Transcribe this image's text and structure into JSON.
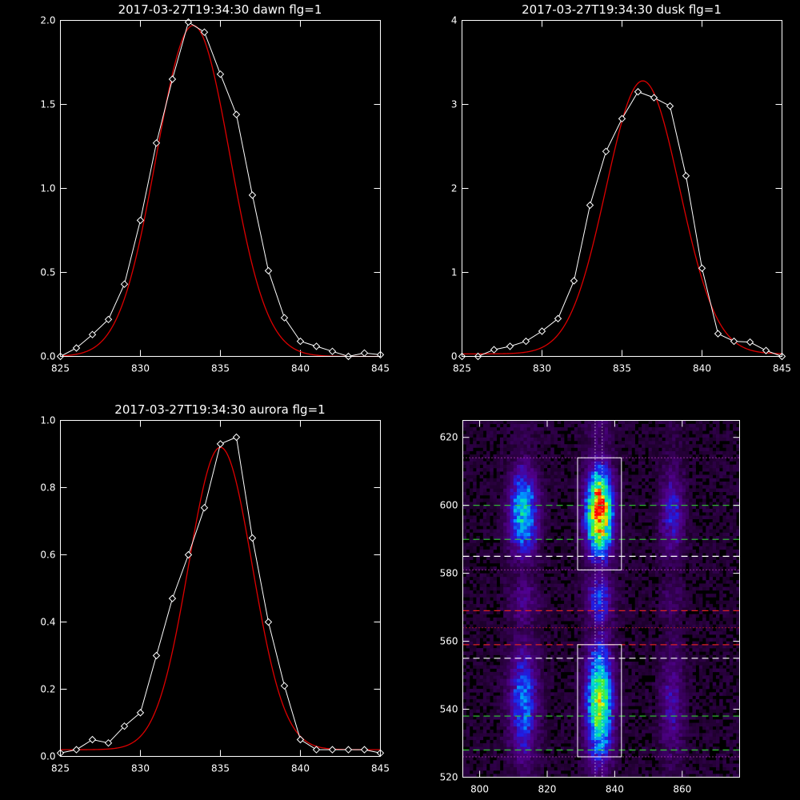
{
  "chart_data": [
    {
      "id": "dawn",
      "type": "line",
      "title": "2017-03-27T19:34:30 dawn flg=1",
      "xlim": [
        825,
        845
      ],
      "ylim": [
        0,
        2.0
      ],
      "xticks": [
        825,
        830,
        835,
        840,
        845
      ],
      "yticks": [
        0.0,
        0.5,
        1.0,
        1.5,
        2.0
      ],
      "ytick_labels": [
        "0.0",
        "0.5",
        "1.0",
        "1.5",
        "2.0"
      ],
      "series": [
        {
          "kind": "data",
          "color": "#ffffff",
          "marker": "diamond",
          "x": [
            825,
            826,
            827,
            828,
            829,
            830,
            831,
            832,
            833,
            834,
            835,
            836,
            837,
            838,
            839,
            840,
            841,
            842,
            843,
            844,
            845
          ],
          "y": [
            0.0,
            0.05,
            0.13,
            0.22,
            0.43,
            0.81,
            1.27,
            1.65,
            1.99,
            1.93,
            1.68,
            1.44,
            0.96,
            0.51,
            0.23,
            0.09,
            0.06,
            0.03,
            0.0,
            0.02,
            0.01
          ]
        },
        {
          "kind": "fit",
          "color": "#dd0000",
          "amp": 1.97,
          "mu": 833.3,
          "sigma": 2.3,
          "offset": 0.0
        }
      ]
    },
    {
      "id": "dusk",
      "type": "line",
      "title": "2017-03-27T19:34:30 dusk flg=1",
      "xlim": [
        825,
        845
      ],
      "ylim": [
        0,
        4
      ],
      "xticks": [
        825,
        830,
        835,
        840,
        845
      ],
      "yticks": [
        0,
        1,
        2,
        3,
        4
      ],
      "ytick_labels": [
        "0",
        "1",
        "2",
        "3",
        "4"
      ],
      "series": [
        {
          "kind": "data",
          "color": "#ffffff",
          "marker": "diamond",
          "x": [
            825,
            826,
            827,
            828,
            829,
            830,
            831,
            832,
            833,
            834,
            835,
            836,
            837,
            838,
            839,
            840,
            841,
            842,
            843,
            844,
            845
          ],
          "y": [
            0.0,
            0.0,
            0.08,
            0.12,
            0.18,
            0.3,
            0.45,
            0.9,
            1.8,
            2.44,
            2.83,
            3.15,
            3.08,
            2.98,
            2.15,
            1.05,
            0.27,
            0.18,
            0.17,
            0.07,
            0.0
          ]
        },
        {
          "kind": "fit",
          "color": "#dd0000",
          "amp": 3.25,
          "mu": 836.3,
          "sigma": 2.3,
          "offset": 0.03
        }
      ]
    },
    {
      "id": "aurora",
      "type": "line",
      "title": "2017-03-27T19:34:30 aurora flg=1",
      "xlim": [
        825,
        845
      ],
      "ylim": [
        0,
        1.0
      ],
      "xticks": [
        825,
        830,
        835,
        840,
        845
      ],
      "yticks": [
        0.0,
        0.2,
        0.4,
        0.6,
        0.8,
        1.0
      ],
      "ytick_labels": [
        "0.0",
        "0.2",
        "0.4",
        "0.6",
        "0.8",
        "1.0"
      ],
      "series": [
        {
          "kind": "data",
          "color": "#ffffff",
          "marker": "diamond",
          "x": [
            825,
            826,
            827,
            828,
            829,
            830,
            831,
            832,
            833,
            834,
            835,
            836,
            837,
            838,
            839,
            840,
            841,
            842,
            843,
            844,
            845
          ],
          "y": [
            0.01,
            0.02,
            0.05,
            0.04,
            0.09,
            0.13,
            0.3,
            0.47,
            0.6,
            0.74,
            0.93,
            0.95,
            0.65,
            0.4,
            0.21,
            0.05,
            0.02,
            0.02,
            0.02,
            0.02,
            0.01
          ]
        },
        {
          "kind": "fit",
          "color": "#dd0000",
          "amp": 0.9,
          "mu": 835.0,
          "sigma": 2.0,
          "offset": 0.02
        }
      ]
    },
    {
      "id": "spectrogram",
      "type": "heatmap",
      "title": "",
      "xlim": [
        795,
        877
      ],
      "ylim": [
        520,
        625
      ],
      "xticks": [
        800,
        820,
        840,
        860
      ],
      "yticks": [
        520,
        540,
        560,
        580,
        600,
        620
      ],
      "columns": [
        {
          "center": 813,
          "width": 3.0,
          "intensity": 0.55
        },
        {
          "center": 835.5,
          "width": 2.8,
          "intensity": 1.0
        },
        {
          "center": 857,
          "width": 2.5,
          "intensity": 0.3
        }
      ],
      "boxes": [
        {
          "x": [
            829,
            842
          ],
          "y": [
            581,
            614
          ],
          "color": "#ffffff"
        },
        {
          "x": [
            829,
            842
          ],
          "y": [
            526,
            559
          ],
          "color": "#ffffff"
        }
      ],
      "hlines": [
        {
          "y": 614,
          "color": "#cc44cc",
          "style": "dotted"
        },
        {
          "y": 600,
          "color": "#33cc33",
          "style": "dashed"
        },
        {
          "y": 590,
          "color": "#33cc33",
          "style": "dashed"
        },
        {
          "y": 585,
          "color": "#ffffff",
          "style": "dashed"
        },
        {
          "y": 581,
          "color": "#cc44cc",
          "style": "dotted"
        },
        {
          "y": 569,
          "color": "#dd2222",
          "style": "dashed"
        },
        {
          "y": 564,
          "color": "#dd2222",
          "style": "dotted"
        },
        {
          "y": 559,
          "color": "#dd2222",
          "style": "dashed"
        },
        {
          "y": 555,
          "color": "#ffffff",
          "style": "dashed"
        },
        {
          "y": 538,
          "color": "#33cc33",
          "style": "dashed"
        },
        {
          "y": 528,
          "color": "#33cc33",
          "style": "dashed"
        },
        {
          "y": 526,
          "color": "#cc44cc",
          "style": "dotted"
        }
      ],
      "vlines": [
        {
          "x": 834.2,
          "color": "#ffffff",
          "style": "dotted"
        },
        {
          "x": 836.3,
          "color": "#ffffff",
          "style": "dotted"
        }
      ]
    }
  ]
}
